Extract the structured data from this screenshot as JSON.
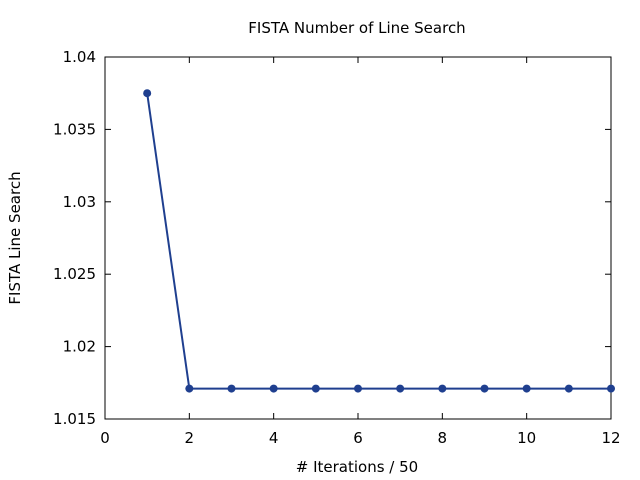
{
  "chart_data": {
    "type": "line",
    "title": "FISTA Number of Line Search",
    "xlabel": "# Iterations / 50",
    "ylabel": "FISTA Line Search",
    "xlim": [
      0,
      12
    ],
    "ylim": [
      1.015,
      1.04
    ],
    "xticks": [
      0,
      2,
      4,
      6,
      8,
      10,
      12
    ],
    "yticks": [
      1.015,
      1.02,
      1.025,
      1.03,
      1.035,
      1.04
    ],
    "xtick_labels": [
      "0",
      "2",
      "4",
      "6",
      "8",
      "10",
      "12"
    ],
    "ytick_labels": [
      "1.015",
      "1.02",
      "1.025",
      "1.03",
      "1.035",
      "1.04"
    ],
    "grid": false,
    "series": [
      {
        "color": "#1f3f8f",
        "x": [
          1,
          2,
          3,
          4,
          5,
          6,
          7,
          8,
          9,
          10,
          11,
          12
        ],
        "y": [
          1.0375,
          1.0171,
          1.0171,
          1.0171,
          1.0171,
          1.0171,
          1.0171,
          1.0171,
          1.0171,
          1.0171,
          1.0171,
          1.0171
        ]
      }
    ]
  }
}
